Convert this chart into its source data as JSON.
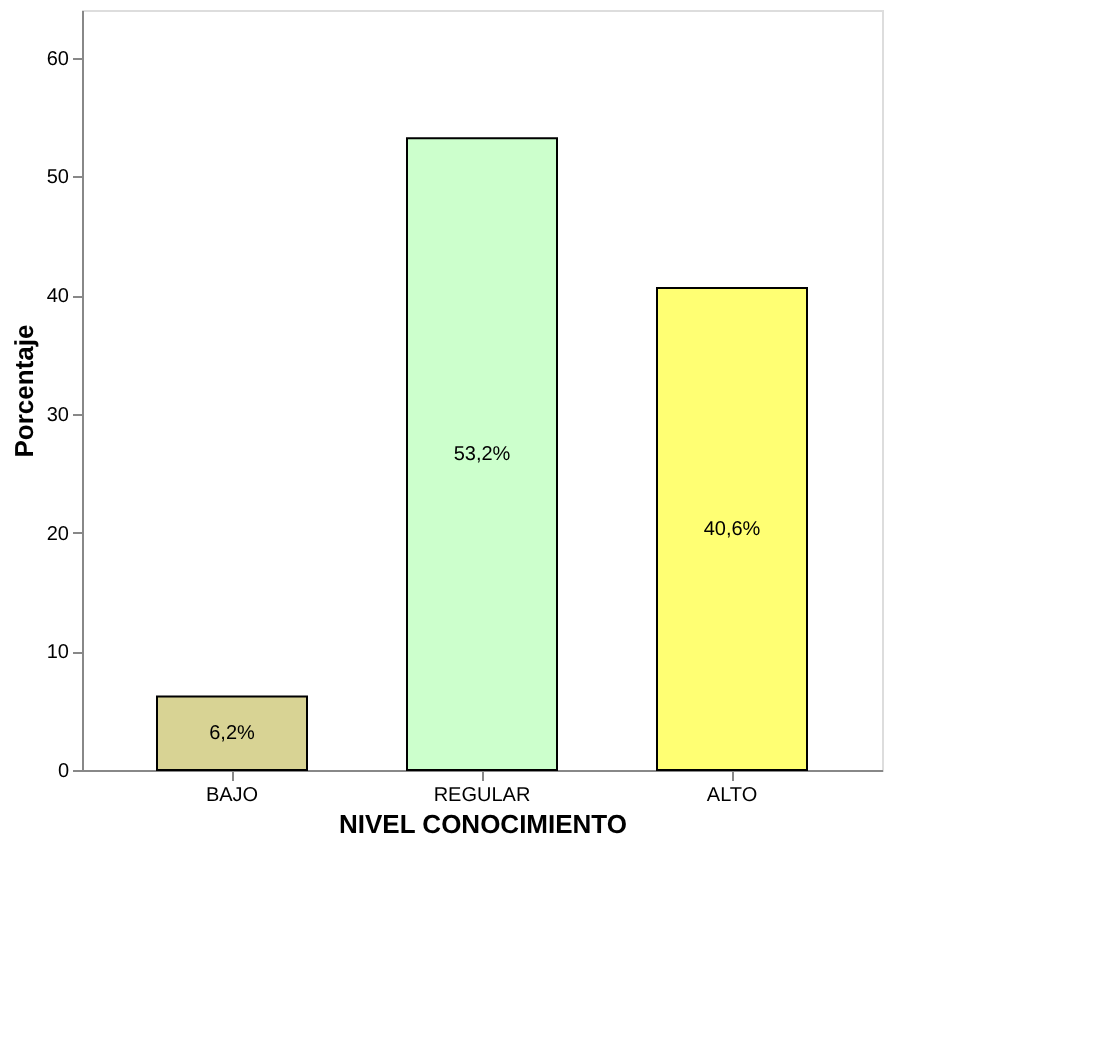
{
  "chart_data": {
    "type": "bar",
    "xlabel": "NIVEL  CONOCIMIENTO",
    "ylabel": "Porcentaje",
    "categories": [
      "BAJO",
      "REGULAR",
      "ALTO"
    ],
    "values": [
      6.2,
      53.2,
      40.6
    ],
    "colors": [
      "#d8d394",
      "#ccffcc",
      "#ffff73"
    ],
    "value_labels": [
      "6,2%",
      "53,2%",
      "40,6%"
    ],
    "ylim": [
      0,
      64
    ],
    "yticks": [
      0,
      10,
      20,
      30,
      40,
      50,
      60
    ]
  }
}
